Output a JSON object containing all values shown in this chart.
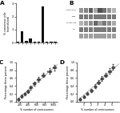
{
  "panel_A": {
    "values": [
      0.05,
      0.9,
      0.12,
      0.3,
      0.05,
      0.05,
      2.75,
      0.05,
      0.05,
      0.05
    ],
    "bar_color": "#111111",
    "ylabel": "% cancerous cells\n(normalized)",
    "ylim": [
      0,
      3.0
    ],
    "yticks": [
      0,
      1,
      2,
      3
    ],
    "label": "A"
  },
  "panel_B": {
    "label": "B",
    "n_lanes": 8,
    "n_rows": 5,
    "row_labels": [
      "pY402 Pyk2",
      "Pyk2",
      "p-Y397 Fak",
      "Fak",
      ""
    ],
    "row_intensities": [
      [
        0.55,
        0.65,
        0.85,
        0.45,
        0.92,
        0.75,
        0.55,
        0.4
      ],
      [
        0.7,
        0.7,
        0.7,
        0.7,
        0.7,
        0.7,
        0.7,
        0.7
      ],
      [
        0.4,
        0.5,
        0.6,
        0.8,
        0.5,
        0.7,
        0.6,
        0.45
      ],
      [
        0.7,
        0.7,
        0.7,
        0.7,
        0.7,
        0.7,
        0.7,
        0.7
      ],
      [
        0.5,
        0.5,
        0.5,
        0.5,
        0.5,
        0.5,
        0.5,
        0.5
      ]
    ],
    "bg_color": "#e8e8e8"
  },
  "panel_C": {
    "label": "C",
    "xlabel": "% number of centrosomes",
    "ylabel": "Percentage these present",
    "xlim": [
      100,
      1100
    ],
    "ylim": [
      0.0,
      1.0
    ],
    "yticks": [
      0.0,
      0.2,
      0.4,
      0.6,
      0.8,
      1.0
    ],
    "xticks": [
      200,
      400,
      600,
      800,
      1000
    ],
    "x": [
      160,
      240,
      310,
      390,
      460,
      540,
      640,
      760,
      900,
      1020
    ],
    "y": [
      0.06,
      0.14,
      0.2,
      0.26,
      0.36,
      0.46,
      0.56,
      0.68,
      0.78,
      0.87
    ],
    "xerr": [
      18,
      22,
      18,
      28,
      22,
      28,
      32,
      38,
      48,
      42
    ],
    "yerr": [
      0.03,
      0.04,
      0.03,
      0.04,
      0.05,
      0.05,
      0.06,
      0.06,
      0.07,
      0.07
    ],
    "line_x": [
      100,
      1100
    ],
    "line_y": [
      0.02,
      0.95
    ],
    "marker_color": "#444444",
    "line_color": "#aaaaaa",
    "marker_size": 1.8
  },
  "panel_D": {
    "label": "D",
    "xlabel": "% number of centrosomes",
    "ylabel": "Percentage these present",
    "xlim": [
      0,
      6
    ],
    "ylim": [
      0.0,
      1.0
    ],
    "yticks": [
      0.0,
      0.2,
      0.4,
      0.6,
      0.8,
      1.0
    ],
    "xticks": [
      1,
      2,
      3,
      4,
      5
    ],
    "x": [
      0.5,
      1.0,
      1.5,
      2.1,
      2.6,
      3.1,
      3.6,
      4.1,
      4.7,
      5.2
    ],
    "y": [
      0.06,
      0.13,
      0.21,
      0.29,
      0.39,
      0.49,
      0.59,
      0.68,
      0.78,
      0.88
    ],
    "xerr": [
      0.08,
      0.12,
      0.1,
      0.15,
      0.12,
      0.18,
      0.15,
      0.2,
      0.22,
      0.18
    ],
    "yerr": [
      0.03,
      0.04,
      0.03,
      0.04,
      0.05,
      0.05,
      0.06,
      0.06,
      0.07,
      0.07
    ],
    "line_x": [
      0,
      6
    ],
    "line_y": [
      0.01,
      0.96
    ],
    "marker_color": "#444444",
    "line_color": "#aaaaaa",
    "marker_size": 1.8
  },
  "bg_color": "#ffffff",
  "fontsize": 3.8
}
